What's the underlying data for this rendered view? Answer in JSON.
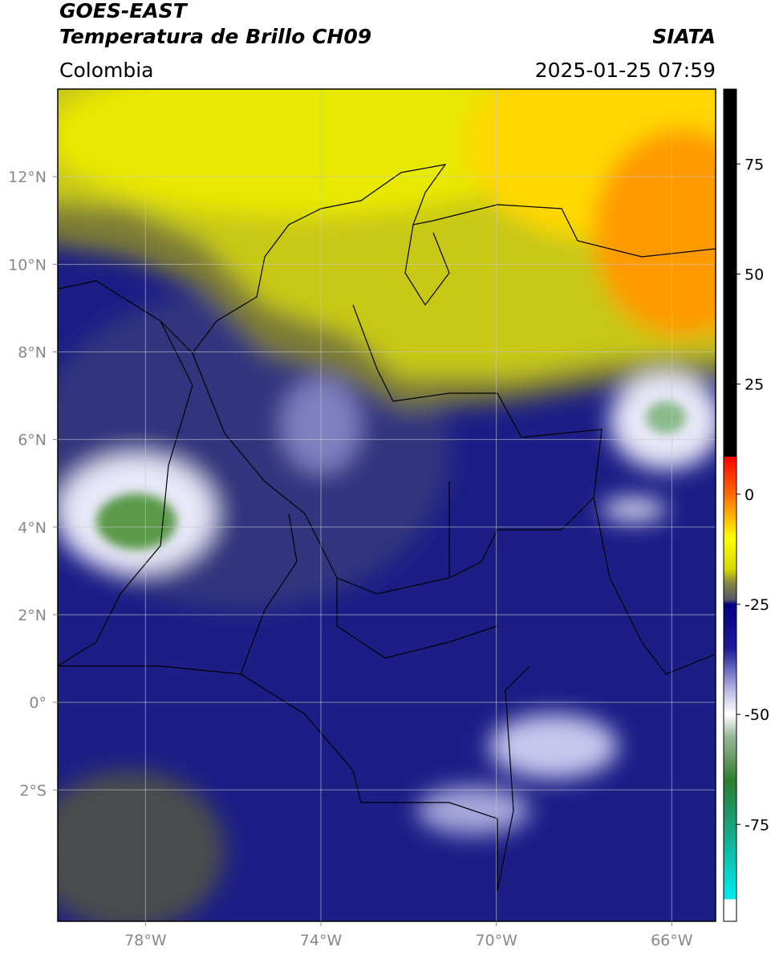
{
  "header": {
    "title": "GOES-EAST",
    "subtitle": "Temperatura de Brillo CH09",
    "source": "SIATA",
    "region": "Colombia",
    "timestamp": "2025-01-25 07:59"
  },
  "map": {
    "xlim": [
      -80,
      -65
    ],
    "ylim": [
      -5,
      14
    ],
    "xticks": [
      {
        "value": -78,
        "label": "78°W"
      },
      {
        "value": -74,
        "label": "74°W"
      },
      {
        "value": -70,
        "label": "70°W"
      },
      {
        "value": -66,
        "label": "66°W"
      }
    ],
    "yticks": [
      {
        "value": -2,
        "label": "2°S"
      },
      {
        "value": 0,
        "label": "0°"
      },
      {
        "value": 2,
        "label": "2°N"
      },
      {
        "value": 4,
        "label": "4°N"
      },
      {
        "value": 6,
        "label": "6°N"
      },
      {
        "value": 8,
        "label": "8°N"
      },
      {
        "value": 10,
        "label": "10°N"
      },
      {
        "value": 12,
        "label": "12°N"
      }
    ],
    "grid": true
  },
  "colorbar": {
    "lim": [
      -97,
      92
    ],
    "ticks": [
      -75,
      -50,
      -25,
      0,
      25,
      50,
      75
    ],
    "colormap": [
      {
        "value": 92,
        "color": "#000000"
      },
      {
        "value": 8.5,
        "color": "#000000"
      },
      {
        "value": 8.5,
        "color": "#ff0000"
      },
      {
        "value": 0,
        "color": "#ff6a00"
      },
      {
        "value": -10,
        "color": "#ffff00"
      },
      {
        "value": -17,
        "color": "#d8d800"
      },
      {
        "value": -20,
        "color": "#8a8a40"
      },
      {
        "value": -24,
        "color": "#555566"
      },
      {
        "value": -25,
        "color": "#000080"
      },
      {
        "value": -35,
        "color": "#1a1a9a"
      },
      {
        "value": -45,
        "color": "#c0c0e8"
      },
      {
        "value": -50,
        "color": "#ffffff"
      },
      {
        "value": -55,
        "color": "#9ab89a"
      },
      {
        "value": -65,
        "color": "#2e7d2e"
      },
      {
        "value": -75,
        "color": "#1aa07a"
      },
      {
        "value": -90,
        "color": "#00e5e5"
      },
      {
        "value": -92,
        "color": "#00e5e5"
      },
      {
        "value": -92,
        "color": "#ffffff"
      },
      {
        "value": -97,
        "color": "#ffffff"
      }
    ]
  }
}
